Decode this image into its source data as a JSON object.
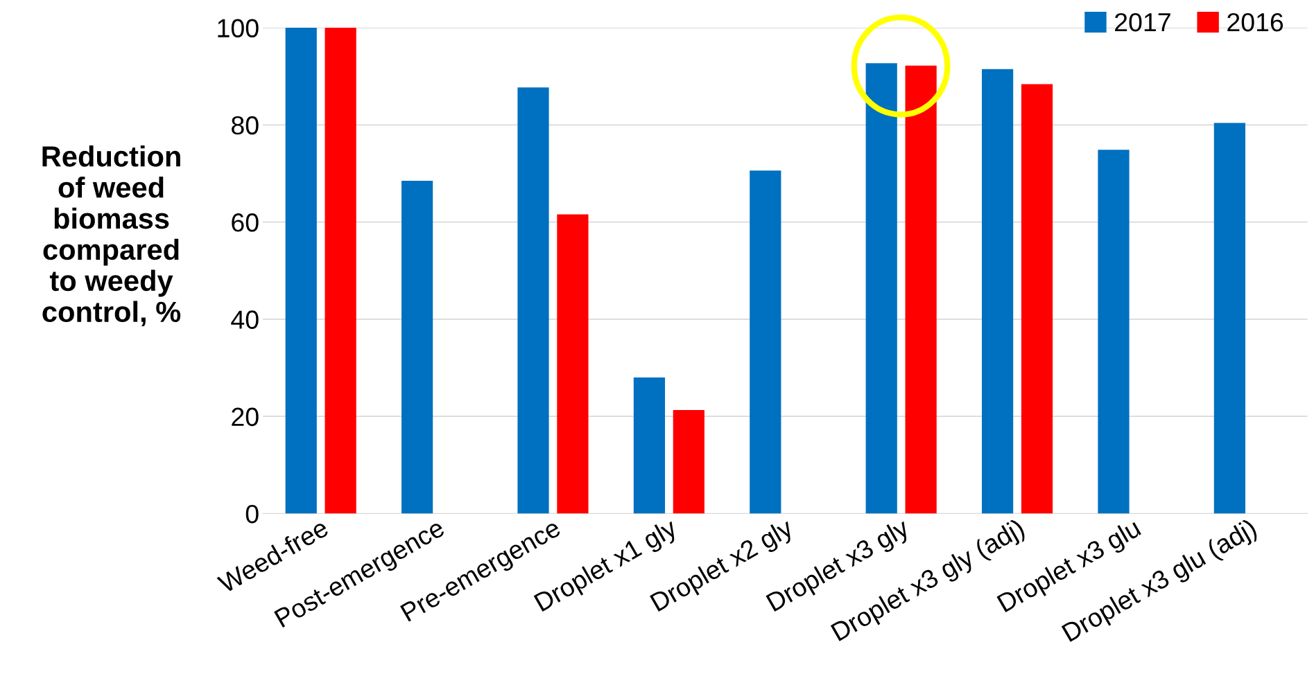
{
  "chart_data": {
    "type": "bar",
    "ylabel": "Reduction\nof weed\nbiomass\ncompared\nto weedy\ncontrol, %",
    "categories": [
      "Weed-free",
      "Post-emergence",
      "Pre-emergence",
      "Droplet x1 gly",
      "Droplet x2 gly",
      "Droplet x3 gly",
      "Droplet x3 gly (adj)",
      "Droplet x3 glu",
      "Droplet x3 glu (adj)"
    ],
    "series": [
      {
        "name": "2017",
        "color": "#0070c0",
        "values": [
          100,
          68.5,
          87.7,
          28.0,
          70.6,
          92.7,
          91.5,
          74.9,
          80.4
        ]
      },
      {
        "name": "2016",
        "color": "#ff0000",
        "values": [
          100,
          null,
          61.6,
          21.3,
          null,
          92.2,
          88.4,
          null,
          null
        ]
      }
    ],
    "ylim": [
      0,
      100
    ],
    "yticks": [
      0,
      20,
      40,
      60,
      80,
      100
    ],
    "grid": "y",
    "legend": "top right"
  }
}
